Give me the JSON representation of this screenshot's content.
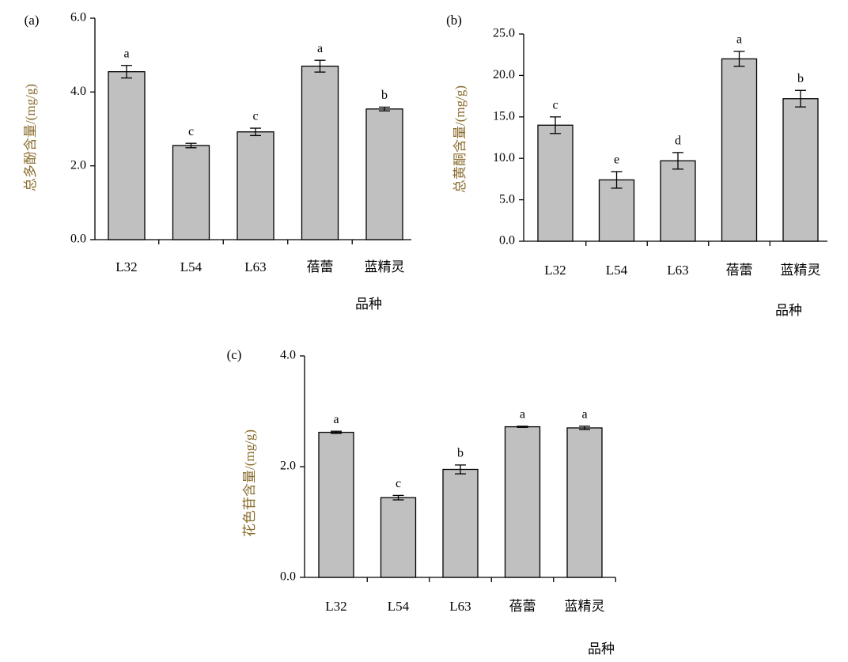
{
  "chart_data": [
    {
      "type": "bar",
      "panel_label": "(a)",
      "categories": [
        "L32",
        "L54",
        "L63",
        "蓓蕾",
        "蓝精灵"
      ],
      "values": [
        4.55,
        2.55,
        2.92,
        4.7,
        3.54
      ],
      "errors": [
        0.17,
        0.06,
        0.1,
        0.16,
        0.05
      ],
      "significance": [
        "a",
        "c",
        "c",
        "a",
        "b"
      ],
      "ylabel": "总多酚含量/(mg/g)",
      "xlabel": "品种",
      "ylim": [
        0,
        6.0
      ],
      "yticks": [
        "0.0",
        "2.0",
        "4.0",
        "6.0"
      ],
      "grid": false
    },
    {
      "type": "bar",
      "panel_label": "(b)",
      "categories": [
        "L32",
        "L54",
        "L63",
        "蓓蕾",
        "蓝精灵"
      ],
      "values": [
        14.0,
        7.4,
        9.7,
        22.0,
        17.2
      ],
      "errors": [
        1.0,
        1.0,
        1.0,
        0.9,
        1.0
      ],
      "significance": [
        "c",
        "e",
        "d",
        "a",
        "b"
      ],
      "ylabel": "总黄酮含量/(mg/g)",
      "xlabel": "品种",
      "ylim": [
        0,
        25.0
      ],
      "yticks": [
        "0.0",
        "5.0",
        "10.0",
        "15.0",
        "20.0",
        "25.0"
      ],
      "grid": false
    },
    {
      "type": "bar",
      "panel_label": "(c)",
      "categories": [
        "L32",
        "L54",
        "L63",
        "蓓蕾",
        "蓝精灵"
      ],
      "values": [
        2.62,
        1.44,
        1.95,
        2.72,
        2.7
      ],
      "errors": [
        0.02,
        0.04,
        0.08,
        0.01,
        0.03
      ],
      "significance": [
        "a",
        "c",
        "b",
        "a",
        "a"
      ],
      "ylabel": "花色苷含量/(mg/g)",
      "xlabel": "品种",
      "ylim": [
        0,
        4.0
      ],
      "yticks": [
        "0.0",
        "2.0",
        "4.0"
      ],
      "grid": false
    }
  ]
}
